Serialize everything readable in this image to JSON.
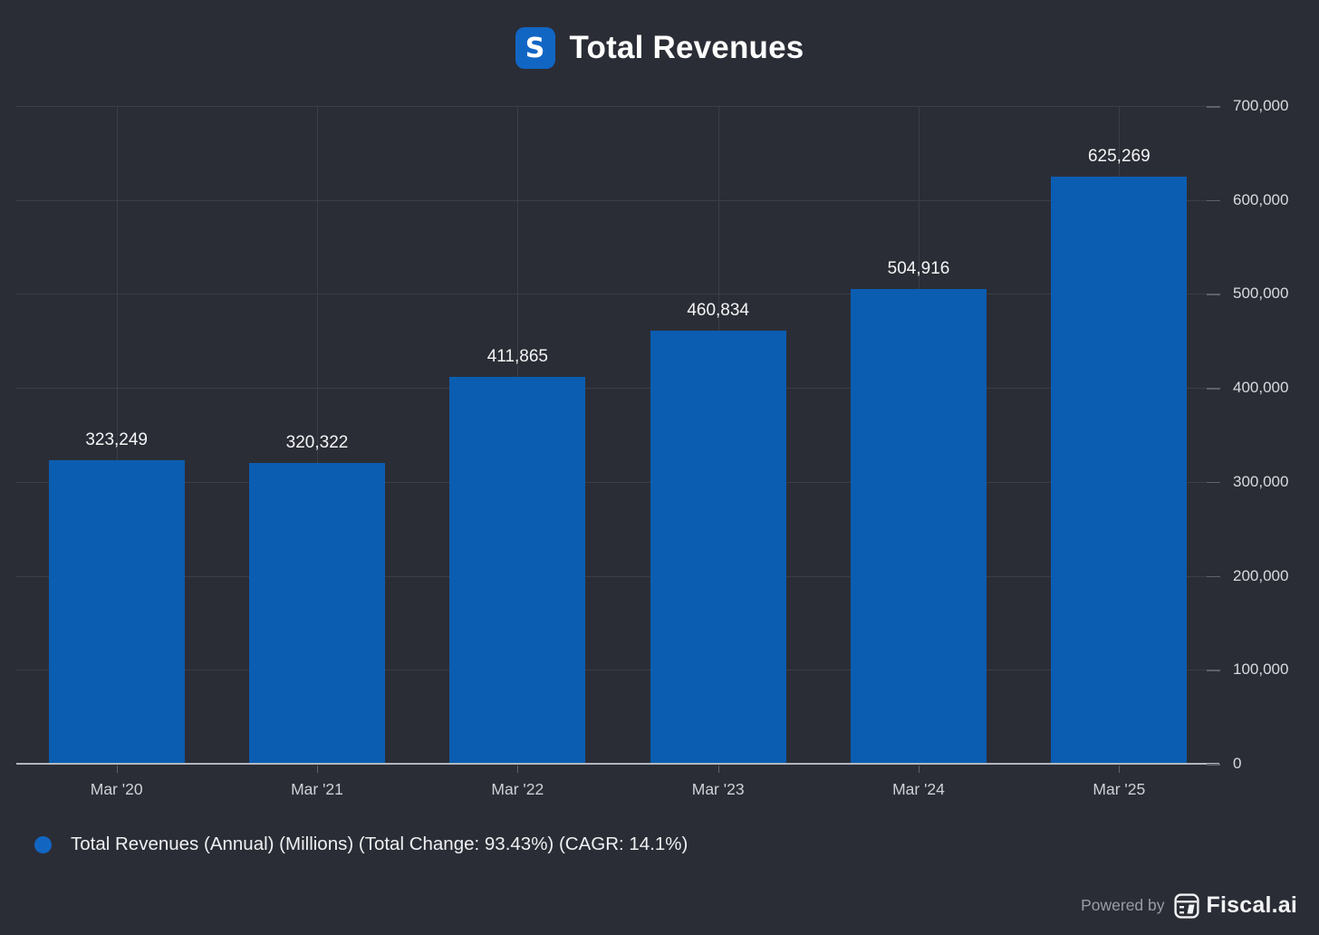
{
  "header": {
    "title": "Total Revenues",
    "logo_letter": "S"
  },
  "chart_data": {
    "type": "bar",
    "title": "Total Revenues",
    "categories": [
      "Mar '20",
      "Mar '21",
      "Mar '22",
      "Mar '23",
      "Mar '24",
      "Mar '25"
    ],
    "values": [
      323249,
      320322,
      411865,
      460834,
      504916,
      625269
    ],
    "value_labels": [
      "323,249",
      "320,322",
      "411,865",
      "460,834",
      "504,916",
      "625,269"
    ],
    "xlabel": "",
    "ylabel": "",
    "ylim": [
      0,
      700000
    ],
    "y_ticks": [
      0,
      100000,
      200000,
      300000,
      400000,
      500000,
      600000,
      700000
    ],
    "y_tick_labels": [
      "0",
      "100,000",
      "200,000",
      "300,000",
      "400,000",
      "500,000",
      "600,000",
      "700,000"
    ],
    "grid": true,
    "legend_position": "bottom-left",
    "bar_color": "#0b5db1",
    "series_name": "Total Revenues (Annual) (Millions)"
  },
  "legend": {
    "label": "Total Revenues (Annual) (Millions) (Total Change: 93.43%) (CAGR: 14.1%)",
    "marker_color": "#1266c2"
  },
  "footer": {
    "powered_by": "Powered by",
    "brand": "Fiscal.ai"
  },
  "colors": {
    "background": "#2b2d36",
    "bar": "#0b5db1",
    "grid": "#3c3e47",
    "axis": "#b3b6bd",
    "title_text": "#ffffff",
    "logo_background": "#1166c4"
  }
}
